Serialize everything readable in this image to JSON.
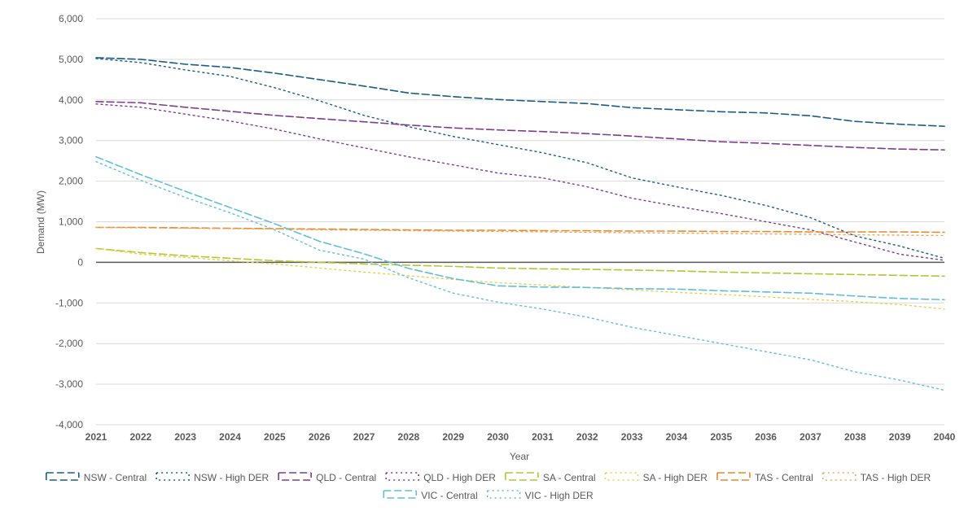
{
  "chart_data": {
    "type": "line",
    "title": "",
    "xlabel": "Year",
    "ylabel": "Demand (MW)",
    "ylim": [
      -4000,
      6000
    ],
    "y_ticks": [
      "6,000",
      "5,000",
      "4,000",
      "3,000",
      "2,000",
      "1,000",
      "0",
      "-1,000",
      "-2,000",
      "-3,000",
      "-4,000"
    ],
    "y_tick_values": [
      6000,
      5000,
      4000,
      3000,
      2000,
      1000,
      0,
      -1000,
      -2000,
      -3000,
      -4000
    ],
    "x": [
      "2021",
      "2022",
      "2023",
      "2024",
      "2025",
      "2026",
      "2027",
      "2028",
      "2029",
      "2030",
      "2031",
      "2032",
      "2033",
      "2034",
      "2035",
      "2036",
      "2037",
      "2038",
      "2039",
      "2040"
    ],
    "grid": true,
    "legend_position": "bottom",
    "series": [
      {
        "name": "NSW - Central",
        "color": "#1b5e85",
        "style": "dashed",
        "values": [
          5040,
          5000,
          4880,
          4800,
          4660,
          4500,
          4340,
          4170,
          4080,
          4010,
          3960,
          3910,
          3810,
          3760,
          3710,
          3680,
          3610,
          3470,
          3400,
          3350
        ]
      },
      {
        "name": "NSW - High DER",
        "color": "#1b5e85",
        "style": "dotted",
        "values": [
          5020,
          4920,
          4740,
          4580,
          4300,
          3980,
          3620,
          3340,
          3100,
          2900,
          2700,
          2450,
          2080,
          1860,
          1650,
          1400,
          1100,
          650,
          400,
          100
        ]
      },
      {
        "name": "QLD - Central",
        "color": "#7d3c8f",
        "style": "dashed",
        "values": [
          3960,
          3930,
          3820,
          3720,
          3620,
          3540,
          3460,
          3380,
          3310,
          3260,
          3220,
          3170,
          3110,
          3040,
          2970,
          2930,
          2880,
          2830,
          2790,
          2770
        ]
      },
      {
        "name": "QLD - High DER",
        "color": "#7d3c8f",
        "style": "dotted",
        "values": [
          3900,
          3820,
          3650,
          3480,
          3280,
          3040,
          2820,
          2600,
          2400,
          2200,
          2080,
          1860,
          1580,
          1380,
          1200,
          1000,
          800,
          500,
          200,
          50
        ]
      },
      {
        "name": "SA - Central",
        "color": "#b5c632",
        "style": "dashed",
        "values": [
          340,
          240,
          160,
          100,
          40,
          0,
          -40,
          -70,
          -100,
          -140,
          -160,
          -170,
          -190,
          -210,
          -240,
          -260,
          -280,
          -300,
          -320,
          -340
        ]
      },
      {
        "name": "SA - High DER",
        "color": "#e3d34f",
        "style": "dotted",
        "values": [
          340,
          200,
          120,
          40,
          -40,
          -140,
          -240,
          -330,
          -420,
          -500,
          -560,
          -620,
          -680,
          -740,
          -790,
          -850,
          -910,
          -970,
          -1040,
          -1150
        ]
      },
      {
        "name": "TAS - Central",
        "color": "#e68a2e",
        "style": "dashed",
        "values": [
          860,
          860,
          850,
          840,
          830,
          820,
          810,
          800,
          790,
          790,
          780,
          780,
          770,
          770,
          760,
          760,
          750,
          750,
          750,
          740
        ]
      },
      {
        "name": "TAS - High DER",
        "color": "#f0a65e",
        "style": "dotted",
        "values": [
          860,
          850,
          840,
          830,
          820,
          800,
          790,
          780,
          770,
          760,
          750,
          740,
          730,
          720,
          710,
          700,
          690,
          680,
          670,
          660
        ]
      },
      {
        "name": "VIC - Central",
        "color": "#62bed8",
        "style": "dashed",
        "values": [
          2600,
          2160,
          1750,
          1350,
          950,
          520,
          210,
          -150,
          -400,
          -580,
          -610,
          -620,
          -650,
          -660,
          -700,
          -730,
          -760,
          -830,
          -890,
          -920
        ]
      },
      {
        "name": "VIC - High DER",
        "color": "#62bed8",
        "style": "dotted",
        "values": [
          2480,
          2020,
          1600,
          1220,
          800,
          300,
          80,
          -380,
          -760,
          -980,
          -1150,
          -1350,
          -1600,
          -1800,
          -2000,
          -2200,
          -2400,
          -2700,
          -2900,
          -3150
        ]
      }
    ]
  }
}
